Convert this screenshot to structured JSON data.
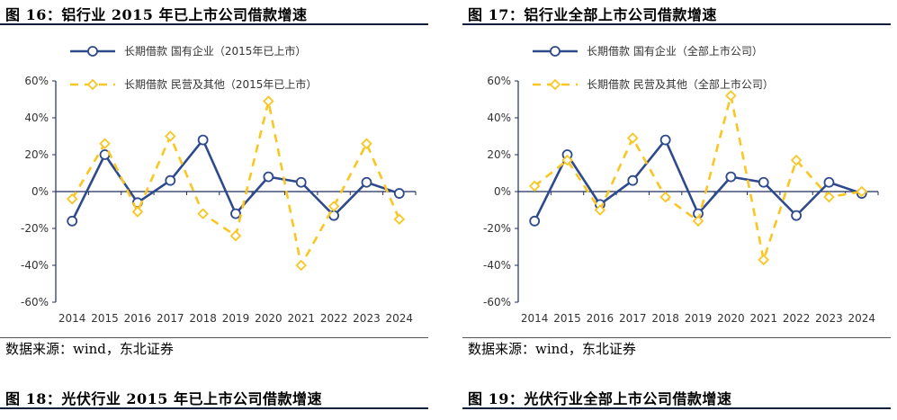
{
  "figures": [
    {
      "title": "图 16：铝行业 2015 年已上市公司借款增速",
      "source": "数据来源：wind，东北证券"
    },
    {
      "title": "图 17：铝行业全部上市公司借款增速",
      "source": "数据来源：wind，东北证券"
    }
  ],
  "next_figures": [
    {
      "title": "图 18：光伏行业 2015 年已上市公司借款增速"
    },
    {
      "title": "图 19：光伏行业全部上市公司借款增速"
    }
  ],
  "colors": {
    "series_soe": "#2e4a8c",
    "series_private": "#f9c623",
    "axis": "#1f2f5a"
  },
  "chart_data": [
    {
      "type": "line",
      "title": "",
      "xlabel": "",
      "ylabel": "",
      "x": [
        "2014",
        "2015",
        "2016",
        "2017",
        "2018",
        "2019",
        "2020",
        "2021",
        "2022",
        "2023",
        "2024"
      ],
      "ylim": [
        -60,
        60
      ],
      "yticks": [
        -60,
        -40,
        -20,
        0,
        20,
        40,
        60
      ],
      "y_unit": "%",
      "grid": false,
      "legend": "top-left",
      "series": [
        {
          "name": "长期借款 国有企业（2015年已上市）",
          "values": [
            -16,
            20,
            -6,
            6,
            28,
            -12,
            8,
            5,
            -13,
            5,
            -1
          ]
        },
        {
          "name": "长期借款 民营及其他（2015年已上市）",
          "values": [
            -4,
            26,
            -11,
            30,
            -12,
            -24,
            49,
            -40,
            -8,
            26,
            -15
          ]
        }
      ]
    },
    {
      "type": "line",
      "title": "",
      "xlabel": "",
      "ylabel": "",
      "x": [
        "2014",
        "2015",
        "2016",
        "2017",
        "2018",
        "2019",
        "2020",
        "2021",
        "2022",
        "2023",
        "2024"
      ],
      "ylim": [
        -60,
        60
      ],
      "yticks": [
        -60,
        -40,
        -20,
        0,
        20,
        40,
        60
      ],
      "y_unit": "%",
      "grid": false,
      "legend": "top-left",
      "series": [
        {
          "name": "长期借款 国有企业（全部上市公司）",
          "values": [
            -16,
            20,
            -7,
            6,
            28,
            -12,
            8,
            5,
            -13,
            5,
            -1
          ]
        },
        {
          "name": "长期借款 民营及其他（全部上市公司）",
          "values": [
            3,
            17,
            -10,
            29,
            -3,
            -16,
            52,
            -37,
            17,
            -3,
            0
          ]
        }
      ]
    }
  ]
}
